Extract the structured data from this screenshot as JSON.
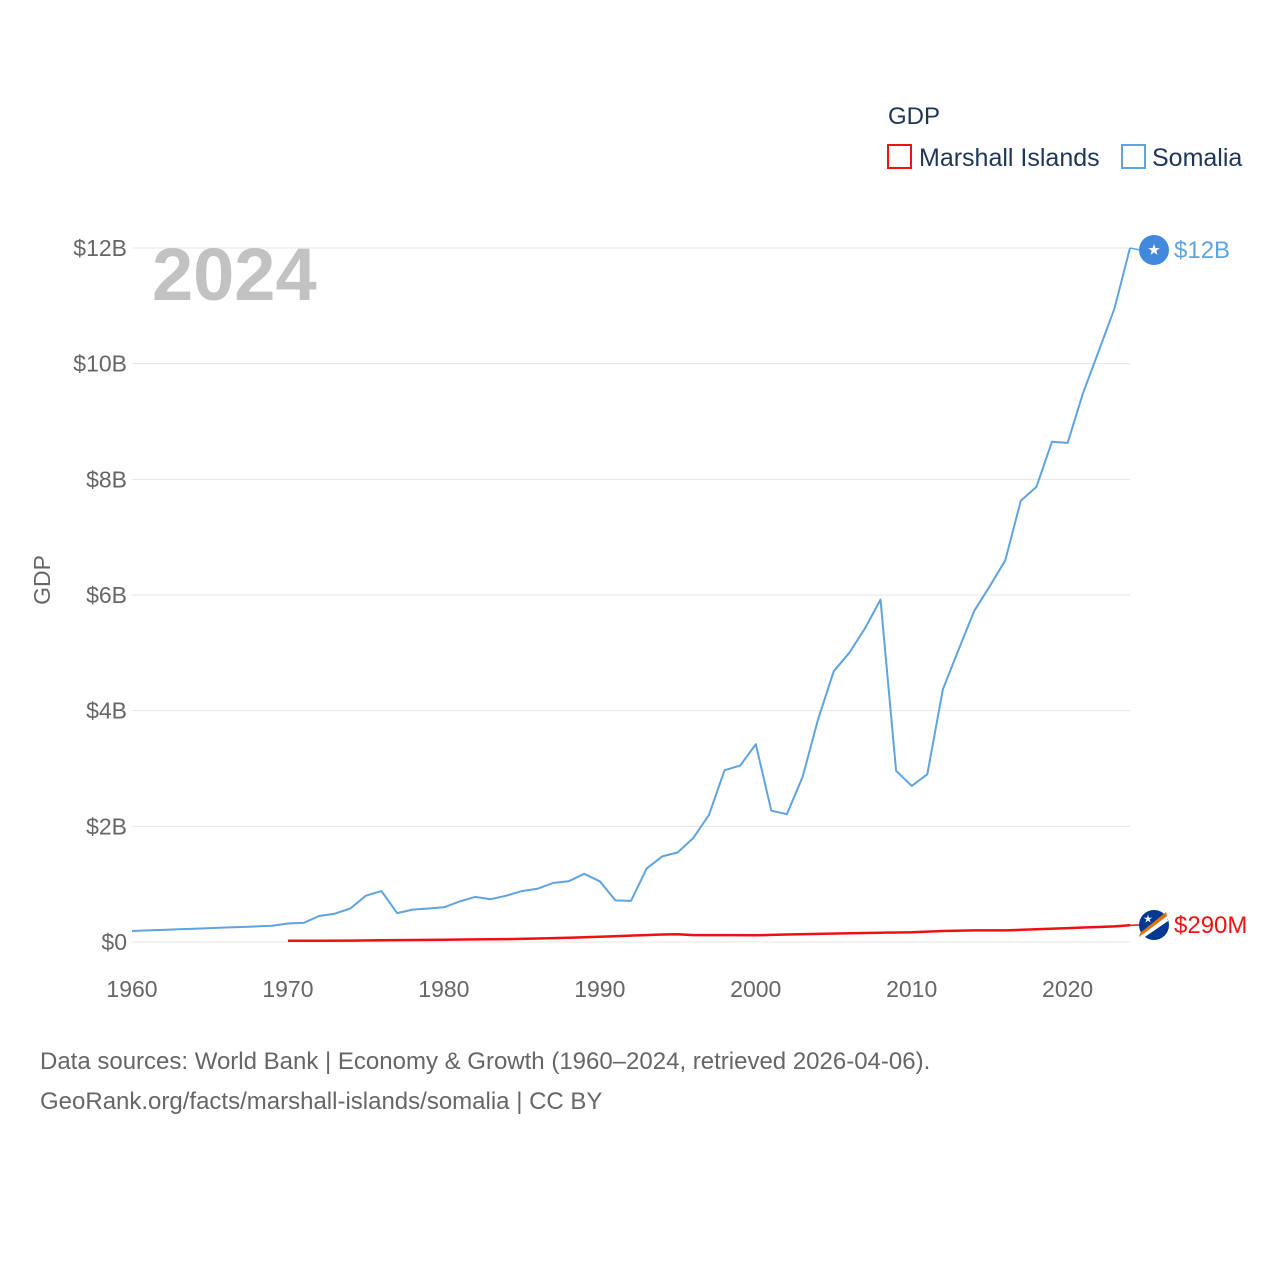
{
  "chart_data": {
    "type": "line",
    "title": "GDP",
    "xlabel": "",
    "ylabel": "GDP",
    "year_label": "2024",
    "xlim": [
      1960,
      2024
    ],
    "ylim": [
      0,
      12
    ],
    "y_unit": "billion USD",
    "x_ticks": [
      1960,
      1970,
      1980,
      1990,
      2000,
      2010,
      2020
    ],
    "x_tick_labels": [
      "1960",
      "1970",
      "1980",
      "1990",
      "2000",
      "2010",
      "2020"
    ],
    "y_ticks": [
      0,
      2,
      4,
      6,
      8,
      10,
      12
    ],
    "y_tick_labels": [
      "$0",
      "$2B",
      "$4B",
      "$6B",
      "$8B",
      "$10B",
      "$12B"
    ],
    "legend": {
      "title": "GDP",
      "position": "top-right"
    },
    "series": [
      {
        "name": "Marshall Islands",
        "color": "#ee1111",
        "end_label": "$290M",
        "flag_icon": "marshall-islands-flag-icon",
        "x": [
          1970,
          1972,
          1974,
          1976,
          1978,
          1980,
          1982,
          1984,
          1986,
          1988,
          1990,
          1992,
          1994,
          1995,
          1996,
          1998,
          2000,
          2002,
          2004,
          2006,
          2008,
          2010,
          2012,
          2014,
          2016,
          2018,
          2020,
          2021,
          2022,
          2023,
          2024
        ],
        "values": [
          0.02,
          0.022,
          0.025,
          0.03,
          0.035,
          0.04,
          0.045,
          0.05,
          0.06,
          0.075,
          0.09,
          0.11,
          0.13,
          0.135,
          0.12,
          0.12,
          0.115,
          0.13,
          0.14,
          0.15,
          0.16,
          0.17,
          0.19,
          0.2,
          0.2,
          0.22,
          0.24,
          0.25,
          0.26,
          0.27,
          0.29
        ]
      },
      {
        "name": "Somalia",
        "color": "#5fa3e0",
        "end_label": "$12B",
        "flag_icon": "somalia-flag-icon",
        "x": [
          1960,
          1961,
          1962,
          1963,
          1964,
          1965,
          1966,
          1967,
          1968,
          1969,
          1970,
          1971,
          1972,
          1973,
          1974,
          1975,
          1976,
          1977,
          1978,
          1979,
          1980,
          1981,
          1982,
          1983,
          1984,
          1985,
          1986,
          1987,
          1988,
          1989,
          1990,
          1991,
          1992,
          1993,
          1994,
          1995,
          1996,
          1997,
          1998,
          1999,
          2000,
          2001,
          2002,
          2003,
          2004,
          2005,
          2006,
          2007,
          2008,
          2009,
          2010,
          2011,
          2012,
          2013,
          2014,
          2015,
          2016,
          2017,
          2018,
          2019,
          2020,
          2021,
          2022,
          2023,
          2024
        ],
        "values": [
          0.19,
          0.2,
          0.21,
          0.22,
          0.23,
          0.24,
          0.25,
          0.26,
          0.27,
          0.28,
          0.32,
          0.33,
          0.45,
          0.49,
          0.58,
          0.8,
          0.88,
          0.5,
          0.56,
          0.58,
          0.6,
          0.7,
          0.78,
          0.74,
          0.8,
          0.88,
          0.92,
          1.02,
          1.05,
          1.18,
          1.05,
          0.72,
          0.71,
          1.27,
          1.48,
          1.55,
          1.8,
          2.2,
          2.97,
          3.05,
          3.42,
          2.27,
          2.21,
          2.85,
          3.85,
          4.68,
          5.0,
          5.42,
          5.92,
          2.96,
          2.7,
          2.9,
          4.37,
          5.05,
          5.72,
          6.15,
          6.6,
          7.63,
          7.87,
          8.65,
          8.63,
          9.5,
          10.22,
          10.95,
          12.0
        ]
      }
    ]
  },
  "source": {
    "line1": "Data sources: World Bank | Economy & Growth (1960–2024, retrieved 2026-04-06).",
    "line2": "GeoRank.org/facts/marshall-islands/somalia | CC BY"
  }
}
